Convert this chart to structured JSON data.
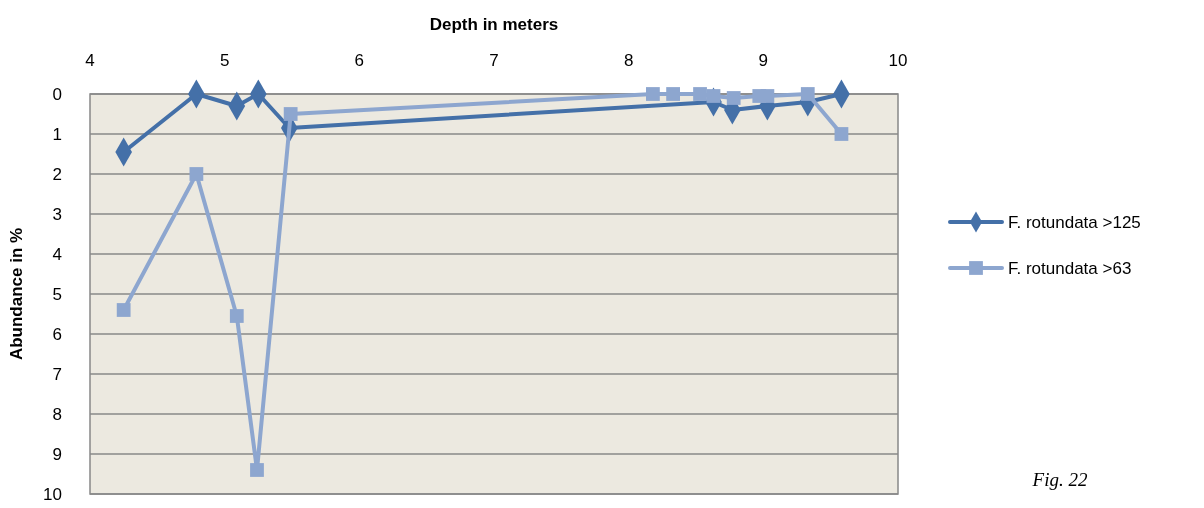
{
  "chart_data": {
    "type": "line",
    "xlabel": "Depth in meters",
    "ylabel": "Abundance in %",
    "xlim": [
      4,
      10
    ],
    "xticks": [
      4,
      5,
      6,
      7,
      8,
      9,
      10
    ],
    "ylim": [
      10,
      0
    ],
    "yticks": [
      0,
      1,
      2,
      3,
      4,
      5,
      6,
      7,
      8,
      9,
      10
    ],
    "grid": "y",
    "legend": "right",
    "line_style": "solid",
    "annotations": [
      "Fig. 22"
    ],
    "series": [
      {
        "name": "F. rotundata >125",
        "color": "#4470a8",
        "marker": "diamond",
        "x": [
          4.25,
          4.79,
          5.09,
          5.25,
          5.48,
          8.63,
          8.77,
          9.03,
          9.33,
          9.58
        ],
        "values": [
          1.45,
          0,
          0.3,
          0,
          0.85,
          0.2,
          0.4,
          0.3,
          0.2,
          0
        ]
      },
      {
        "name": "F. rotundata >63",
        "color": "#8da6cf",
        "marker": "square",
        "x": [
          4.25,
          4.79,
          5.09,
          5.24,
          5.49,
          8.18,
          8.33,
          8.53,
          8.63,
          8.78,
          8.97,
          9.03,
          9.33,
          9.58
        ],
        "values": [
          5.4,
          2,
          5.55,
          9.4,
          0.5,
          0,
          0,
          0,
          0.05,
          0.1,
          0.05,
          0.05,
          0,
          1
        ]
      }
    ]
  }
}
